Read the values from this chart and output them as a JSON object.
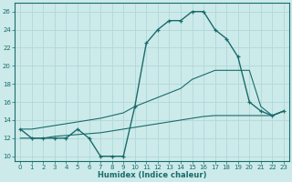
{
  "xlabel": "Humidex (Indice chaleur)",
  "bg_color": "#cceaea",
  "grid_color": "#b0d8d8",
  "line_color": "#1a6b6b",
  "xlim": [
    -0.5,
    23.5
  ],
  "ylim": [
    9.5,
    27.0
  ],
  "xticks": [
    0,
    1,
    2,
    3,
    4,
    5,
    6,
    7,
    8,
    9,
    10,
    11,
    12,
    13,
    14,
    15,
    16,
    17,
    18,
    19,
    20,
    21,
    22,
    23
  ],
  "yticks": [
    10,
    12,
    14,
    16,
    18,
    20,
    22,
    24,
    26
  ],
  "line1_x": [
    0,
    1,
    2,
    3,
    4,
    5,
    6,
    7,
    8,
    9,
    10,
    11,
    12,
    13,
    14,
    15,
    16,
    17,
    18,
    19,
    20,
    21,
    22,
    23
  ],
  "line1_y": [
    13,
    12,
    12,
    12,
    12,
    13,
    12,
    10,
    10,
    10,
    15.5,
    22.5,
    24,
    25,
    25,
    26,
    26,
    24,
    23,
    21,
    16,
    15,
    14.5,
    15
  ],
  "line2_x": [
    0,
    1,
    2,
    3,
    4,
    5,
    6,
    7,
    8,
    9,
    10,
    11,
    12,
    13,
    14,
    15,
    16,
    17,
    18,
    19,
    20,
    21,
    22,
    23
  ],
  "line2_y": [
    13,
    13,
    13.2,
    13.4,
    13.6,
    13.8,
    14.0,
    14.2,
    14.5,
    14.8,
    15.5,
    16.0,
    16.5,
    17.0,
    17.5,
    18.5,
    19.0,
    19.5,
    19.5,
    19.5,
    19.5,
    15.5,
    14.5,
    15
  ],
  "line3_x": [
    0,
    1,
    2,
    3,
    4,
    5,
    6,
    7,
    8,
    9,
    10,
    11,
    12,
    13,
    14,
    15,
    16,
    17,
    18,
    19,
    20,
    21,
    22,
    23
  ],
  "line3_y": [
    12,
    12,
    12,
    12.2,
    12.3,
    12.4,
    12.5,
    12.6,
    12.8,
    13.0,
    13.2,
    13.4,
    13.6,
    13.8,
    14.0,
    14.2,
    14.4,
    14.5,
    14.5,
    14.5,
    14.5,
    14.5,
    14.5,
    15
  ]
}
